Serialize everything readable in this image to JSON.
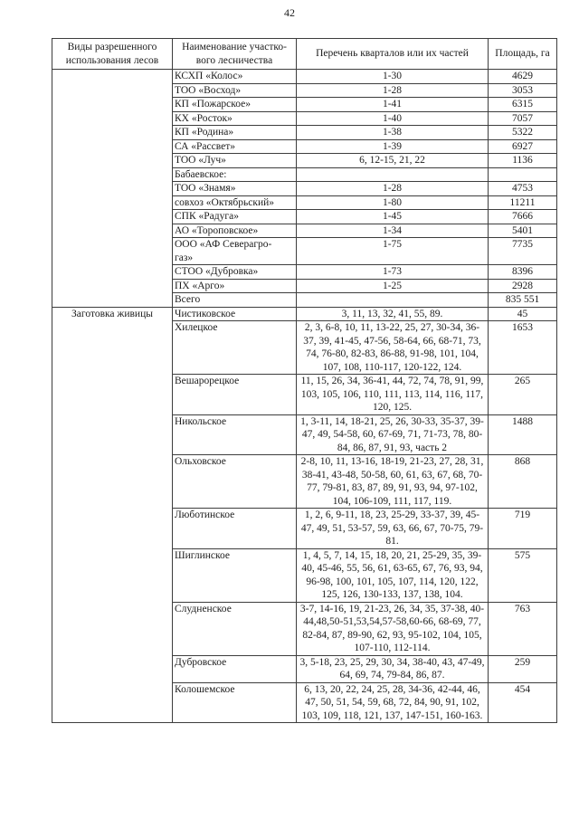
{
  "page": {
    "number": "42"
  },
  "table": {
    "headers": [
      "Виды разрешенного использования лесов",
      "Наименование участко-\nвого лесничества",
      "Перечень кварталов или их частей",
      "Площадь, га"
    ],
    "sections": [
      {
        "label": "",
        "rows": [
          {
            "name": "КСХП «Колос»",
            "quarters": "1-30",
            "area": "4629"
          },
          {
            "name": "ТОО «Восход»",
            "quarters": "1-28",
            "area": "3053"
          },
          {
            "name": "КП «Пожарское»",
            "quarters": "1-41",
            "area": "6315"
          },
          {
            "name": "КХ «Росток»",
            "quarters": "1-40",
            "area": "7057"
          },
          {
            "name": "КП «Родина»",
            "quarters": "1-38",
            "area": "5322"
          },
          {
            "name": "СА «Рассвет»",
            "quarters": "1-39",
            "area": "6927"
          },
          {
            "name": "ТОО «Луч»",
            "quarters": "6, 12-15, 21, 22",
            "area": "1136"
          },
          {
            "name": "Бабаевское:",
            "quarters": "",
            "area": ""
          },
          {
            "name": "ТОО «Знамя»",
            "quarters": "1-28",
            "area": "4753"
          },
          {
            "name": "совхоз «Октябрьский»",
            "quarters": "1-80",
            "area": "11211"
          },
          {
            "name": "СПК «Радуга»",
            "quarters": "1-45",
            "area": "7666"
          },
          {
            "name": "АО «Тороповское»",
            "quarters": "1-34",
            "area": "5401"
          },
          {
            "name": "ООО «АФ Северагро-\nгаз»",
            "quarters": "1-75",
            "area": "7735"
          },
          {
            "name": "СТОО «Дубровка»",
            "quarters": "1-73",
            "area": "8396"
          },
          {
            "name": "ПХ «Арго»",
            "quarters": "1-25",
            "area": "2928"
          },
          {
            "name": "Всего",
            "quarters": "",
            "area": "835 551",
            "bold": true
          }
        ]
      },
      {
        "label": "Заготовка живицы",
        "rows": [
          {
            "name": "Чистиковское",
            "quarters": "3, 11, 13, 32, 41, 55, 89.",
            "area": "45"
          },
          {
            "name": "Хилецкое",
            "quarters": "2, 3, 6-8, 10, 11, 13-22, 25, 27, 30-34, 36-37, 39, 41-45, 47-56, 58-64, 66, 68-71, 73, 74, 76-80, 82-83, 86-88, 91-98, 101, 104, 107, 108, 110-117, 120-122, 124.",
            "area": "1653"
          },
          {
            "name": "Вешарорецкое",
            "quarters": "11, 15, 26, 34, 36-41, 44, 72, 74, 78, 91, 99, 103, 105, 106, 110, 111, 113, 114, 116, 117, 120, 125.",
            "area": "265"
          },
          {
            "name": "Никольское",
            "quarters": "1, 3-11, 14, 18-21, 25, 26, 30-33, 35-37, 39-47, 49, 54-58, 60, 67-69, 71, 71-73, 78, 80-84, 86, 87, 91, 93, часть 2",
            "area": "1488"
          },
          {
            "name": "Ольховское",
            "quarters": "2-8, 10, 11, 13-16, 18-19, 21-23, 27, 28, 31, 38-41, 43-48, 50-58, 60, 61, 63, 67, 68, 70-77, 79-81, 83, 87, 89, 91, 93, 94, 97-102, 104, 106-109, 111, 117, 119.",
            "area": "868"
          },
          {
            "name": "Люботинское",
            "quarters": "1, 2, 6, 9-11, 18, 23, 25-29, 33-37, 39, 45-47, 49, 51, 53-57, 59, 63, 66, 67, 70-75, 79-81.",
            "area": "719"
          },
          {
            "name": "Шиглинское",
            "quarters": "1, 4, 5, 7, 14, 15, 18, 20, 21, 25-29, 35, 39-40, 45-46, 55, 56, 61, 63-65, 67, 76, 93, 94, 96-98, 100, 101, 105, 107, 114, 120, 122, 125, 126, 130-133, 137, 138, 104.",
            "area": "575"
          },
          {
            "name": "Слудненское",
            "quarters": "3-7, 14-16, 19, 21-23, 26, 34, 35, 37-38, 40-44,48,50-51,53,54,57-58,60-66, 68-69, 77, 82-84, 87, 89-90, 62, 93, 95-102, 104, 105, 107-110, 112-114.",
            "area": "763"
          },
          {
            "name": "Дубровское",
            "quarters": "3, 5-18, 23, 25, 29, 30, 34, 38-40, 43, 47-49, 64, 69, 74, 79-84, 86, 87.",
            "area": "259"
          },
          {
            "name": "Колошемское",
            "quarters": "6, 13, 20, 22, 24, 25, 28, 34-36, 42-44, 46, 47, 50, 51, 54, 59, 68, 72, 84, 90, 91, 102, 103, 109, 118, 121, 137, 147-151, 160-163.",
            "area": "454"
          }
        ]
      }
    ]
  }
}
